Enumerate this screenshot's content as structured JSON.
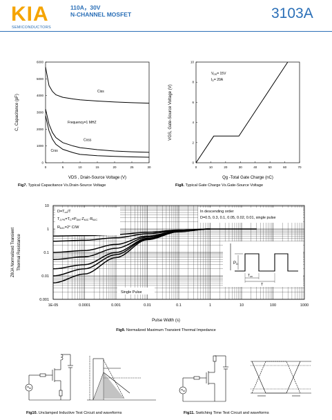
{
  "header": {
    "logo": "KIA",
    "company": "SEMICONDUCTORS",
    "spec_line1": "110A，30V",
    "spec_line2": "N-CHANNEL MOSFET",
    "part_number": "3103A"
  },
  "colors": {
    "brand_blue": "#2a6fb7",
    "logo_orange": "#f5a400"
  },
  "fig7": {
    "caption_num": "Fig7.",
    "caption_text": " Typical Capacitance Vs.Drain-Source Voltage",
    "xlabel": "VDS , Drain-Source Voltage (V)",
    "ylabel": "C, Capacitance (pF)",
    "annotation": "Frequency=1 MHZ",
    "x_ticks": [
      "0",
      "5",
      "10",
      "15",
      "20",
      "25",
      "30"
    ],
    "y_ticks": [
      "0",
      "1000",
      "2000",
      "3000",
      "4000",
      "5000",
      "6000"
    ],
    "chart_data": {
      "type": "line",
      "xlim": [
        0,
        30
      ],
      "ylim": [
        0,
        6000
      ],
      "series": [
        {
          "name": "Ciss",
          "x": [
            0,
            1,
            2,
            3,
            5,
            8,
            10,
            15,
            20,
            25,
            30
          ],
          "values": [
            5700,
            4600,
            4250,
            4050,
            3900,
            3800,
            3750,
            3680,
            3620,
            3580,
            3550
          ]
        },
        {
          "name": "Coss",
          "x": [
            0,
            1,
            2,
            3,
            5,
            8,
            10,
            15,
            20,
            25,
            30
          ],
          "values": [
            3200,
            2300,
            1800,
            1500,
            1200,
            1000,
            900,
            780,
            700,
            650,
            620
          ]
        },
        {
          "name": "Crss",
          "x": [
            0,
            1,
            2,
            3,
            5,
            8,
            10,
            15,
            20,
            25,
            30
          ],
          "values": [
            2800,
            1900,
            1400,
            1100,
            800,
            600,
            500,
            420,
            380,
            350,
            330
          ]
        }
      ]
    }
  },
  "fig8": {
    "caption_num": "Fig8.",
    "caption_text": " Typical Gate Charge Vs.Gate-Source Voltage",
    "xlabel": "Qg -Total Gate Charge (nC)",
    "ylabel": "VGS, Gate-Source Voltage (V)",
    "ann1": "V",
    "ann1_sub": "DS",
    "ann1_rest": "= 15V",
    "ann2": "I",
    "ann2_sub": "D",
    "ann2_rest": "= 20A",
    "x_ticks": [
      "0",
      "10",
      "20",
      "30",
      "40",
      "50",
      "60",
      "70"
    ],
    "y_ticks": [
      "0",
      "2",
      "4",
      "6",
      "8",
      "10"
    ],
    "chart_data": {
      "type": "line",
      "xlim": [
        0,
        70
      ],
      "ylim": [
        0,
        10
      ],
      "series": [
        {
          "x": [
            0,
            12,
            29,
            62
          ],
          "values": [
            0,
            2.65,
            2.65,
            10
          ]
        }
      ]
    }
  },
  "fig9": {
    "caption_num": "Fig9.",
    "caption_text": " Normalized Maximum Transient Thermal Impedance",
    "xlabel": "Pulse Width (s)",
    "ylabel_line1": "ZθJA Normalized Transient",
    "ylabel_line2": "Thermal Resistance",
    "legend_title": "In descending order",
    "legend_values": "D=0.5, 0.3, 0.1, 0.05, 0.02, 0.01, single pulse",
    "formula_1": "D=T",
    "formula_1_sub": "on",
    "formula_1_rest": "/T",
    "formula_2": "T",
    "formula_2_sub": "J,PK",
    "formula_2_rest": "=T",
    "formula_2b_sub": "C",
    "formula_2c": "+P",
    "formula_2c_sub": "DM",
    "formula_2d": "·Z",
    "formula_2d_sub": "θJC",
    "formula_2e": "·R",
    "formula_2e_sub": "θJC",
    "formula_3": "R",
    "formula_3_sub": "θJC",
    "formula_3_rest": "=2°  C/W",
    "single_pulse": "Single Pulse",
    "pd_label": "P",
    "pd_sub": "D",
    "ton_label": "T",
    "ton_sub": "on",
    "t_label": "T",
    "x_ticks": [
      "1E-05",
      "0.0001",
      "0.001",
      "0.01",
      "0.1",
      "1",
      "10",
      "100",
      "1000"
    ],
    "y_ticks": [
      "0.001",
      "0.01",
      "0.1",
      "1",
      "10"
    ],
    "chart_data": {
      "type": "line",
      "x_scale": "log",
      "y_scale": "log",
      "xlim": [
        1e-05,
        1000
      ],
      "ylim": [
        0.001,
        10
      ],
      "series": [
        {
          "name": "D=0.5",
          "x": [
            1e-05,
            0.0001,
            0.001,
            0.01,
            0.1,
            1
          ],
          "values": [
            0.5,
            0.52,
            0.58,
            0.72,
            0.9,
            1
          ]
        },
        {
          "name": "D=0.3",
          "x": [
            1e-05,
            0.0001,
            0.001,
            0.01,
            0.1,
            1
          ],
          "values": [
            0.3,
            0.33,
            0.42,
            0.62,
            0.86,
            1
          ]
        },
        {
          "name": "D=0.1",
          "x": [
            1e-05,
            0.0001,
            0.001,
            0.01,
            0.1,
            1
          ],
          "values": [
            0.1,
            0.12,
            0.22,
            0.5,
            0.82,
            1
          ]
        },
        {
          "name": "D=0.05",
          "x": [
            1e-05,
            0.0001,
            0.001,
            0.01,
            0.1,
            1
          ],
          "values": [
            0.05,
            0.065,
            0.15,
            0.45,
            0.8,
            1
          ]
        },
        {
          "name": "D=0.02",
          "x": [
            1e-05,
            0.0001,
            0.001,
            0.01,
            0.1,
            1
          ],
          "values": [
            0.02,
            0.03,
            0.1,
            0.4,
            0.78,
            1
          ]
        },
        {
          "name": "D=0.01",
          "x": [
            1e-05,
            0.0001,
            0.001,
            0.01,
            0.1,
            1
          ],
          "values": [
            0.01,
            0.02,
            0.08,
            0.38,
            0.77,
            1
          ]
        },
        {
          "name": "single pulse",
          "x": [
            1e-05,
            0.0001,
            0.001,
            0.01,
            0.1,
            1
          ],
          "values": [
            0.005,
            0.012,
            0.06,
            0.35,
            0.76,
            1
          ]
        }
      ]
    }
  },
  "fig10": {
    "caption_num": "Fig10.",
    "caption_text": " Unclamped Inductive Test Circuit and waveforms"
  },
  "fig11": {
    "caption_num": "Fig11.",
    "caption_text": " Switching Time Test Circuit and waveforms"
  }
}
